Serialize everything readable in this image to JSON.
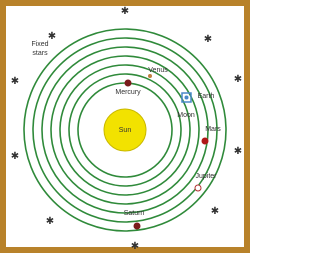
{
  "title_lines": [
    "Fixed",
    "stars"
  ],
  "sun": {
    "label": "Sun"
  },
  "planets": [
    {
      "label": "Mercury"
    },
    {
      "label": "Venus"
    },
    {
      "label": "Earth"
    },
    {
      "label": "Moon"
    },
    {
      "label": "Mars"
    },
    {
      "label": "Jupiter"
    },
    {
      "label": "Saturn"
    }
  ]
}
